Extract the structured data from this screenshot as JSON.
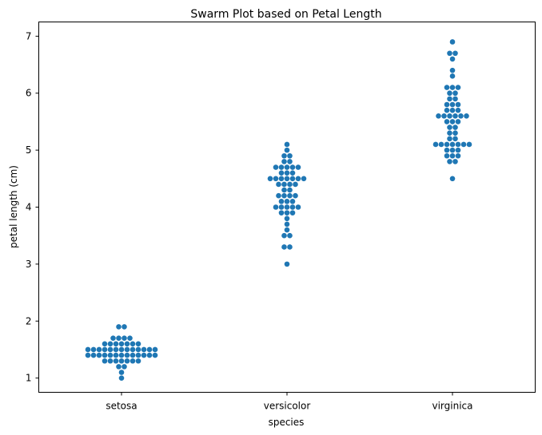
{
  "chart_data": {
    "type": "scatter",
    "subtype": "swarm",
    "title": "Swarm Plot based on Petal Length",
    "xlabel": "species",
    "ylabel": "petal length (cm)",
    "ylim": [
      0.75,
      7.25
    ],
    "yticks": [
      "1",
      "2",
      "3",
      "4",
      "5",
      "6",
      "7"
    ],
    "grid": false,
    "point_color": "#1f77b4",
    "categories": [
      "setosa",
      "versicolor",
      "virginica"
    ],
    "series": [
      {
        "category": "setosa",
        "values": [
          1.4,
          1.4,
          1.3,
          1.5,
          1.4,
          1.7,
          1.4,
          1.5,
          1.4,
          1.5,
          1.5,
          1.6,
          1.4,
          1.1,
          1.2,
          1.5,
          1.3,
          1.4,
          1.7,
          1.5,
          1.7,
          1.5,
          1.0,
          1.7,
          1.9,
          1.6,
          1.6,
          1.5,
          1.4,
          1.6,
          1.6,
          1.5,
          1.5,
          1.4,
          1.5,
          1.2,
          1.3,
          1.4,
          1.3,
          1.5,
          1.3,
          1.3,
          1.3,
          1.6,
          1.9,
          1.4,
          1.6,
          1.4,
          1.5,
          1.4
        ]
      },
      {
        "category": "versicolor",
        "values": [
          4.7,
          4.5,
          4.9,
          4.0,
          4.6,
          4.5,
          4.7,
          3.3,
          4.6,
          3.9,
          3.5,
          4.2,
          4.0,
          4.7,
          3.6,
          4.4,
          4.5,
          4.1,
          4.5,
          3.9,
          4.8,
          4.0,
          4.9,
          4.7,
          4.3,
          4.4,
          4.8,
          5.0,
          4.5,
          3.5,
          3.8,
          3.7,
          3.9,
          5.1,
          4.5,
          4.5,
          4.7,
          4.4,
          4.1,
          4.0,
          4.4,
          4.6,
          4.0,
          3.3,
          4.2,
          4.2,
          4.2,
          4.3,
          3.0,
          4.1
        ]
      },
      {
        "category": "virginica",
        "values": [
          6.0,
          5.1,
          5.9,
          5.6,
          5.8,
          6.6,
          4.5,
          6.3,
          5.8,
          6.1,
          5.1,
          5.3,
          5.5,
          5.0,
          5.1,
          5.3,
          5.5,
          6.7,
          6.9,
          5.0,
          5.7,
          4.9,
          6.7,
          4.9,
          5.7,
          6.0,
          4.8,
          4.9,
          5.6,
          5.8,
          6.1,
          6.4,
          5.6,
          5.1,
          5.6,
          6.1,
          5.6,
          5.5,
          4.8,
          5.4,
          5.6,
          5.1,
          5.1,
          5.9,
          5.7,
          5.2,
          5.0,
          5.2,
          5.4,
          5.1
        ]
      }
    ]
  }
}
